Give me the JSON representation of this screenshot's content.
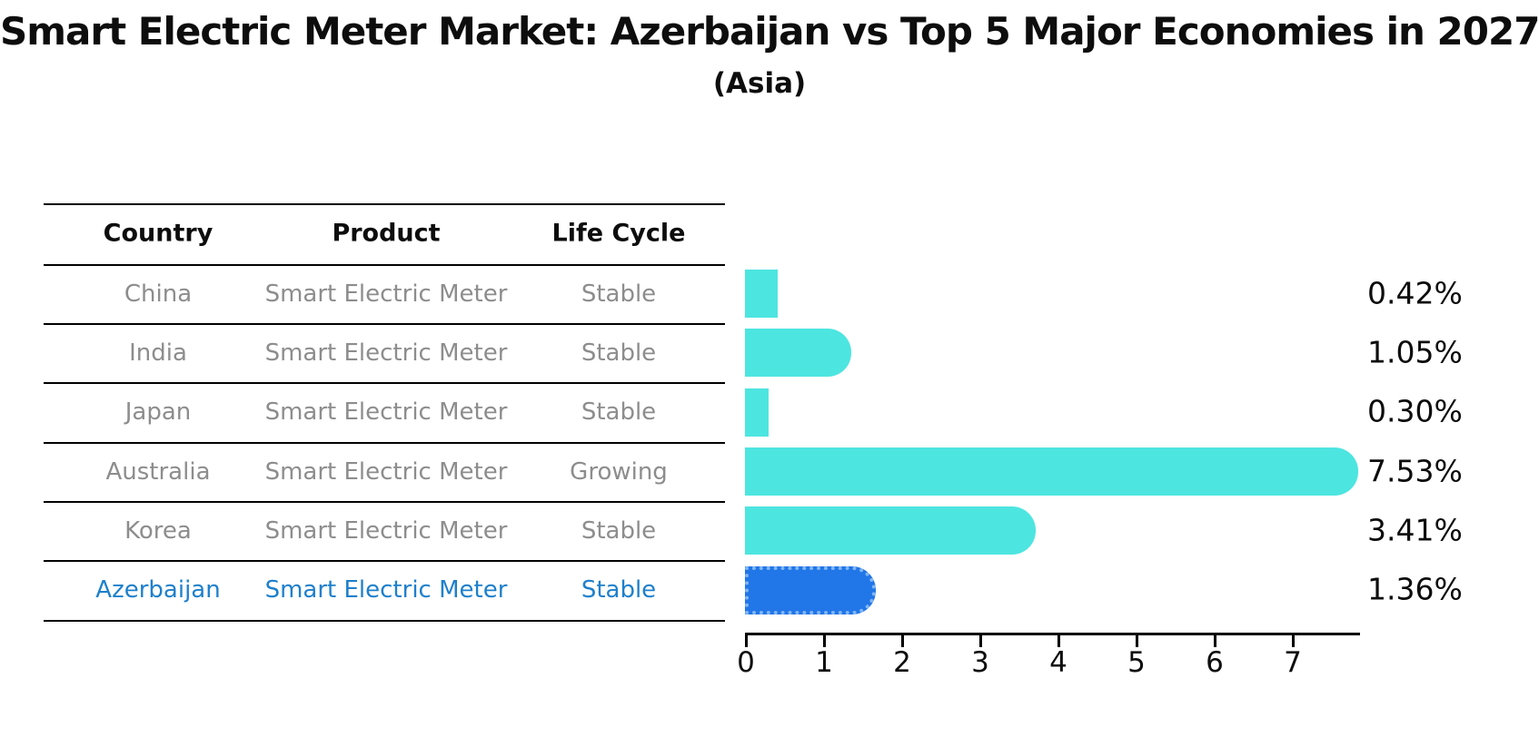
{
  "title": "Smart Electric Meter Market: Azerbaijan vs Top 5 Major Economies in 2027",
  "subtitle": "(Asia)",
  "table": {
    "columns": [
      "Country",
      "Product",
      "Life Cycle"
    ],
    "rows": [
      {
        "country": "China",
        "product": "Smart Electric Meter",
        "life_cycle": "Stable",
        "highlighted": false
      },
      {
        "country": "India",
        "product": "Smart Electric Meter",
        "life_cycle": "Stable",
        "highlighted": false
      },
      {
        "country": "Japan",
        "product": "Smart Electric Meter",
        "life_cycle": "Stable",
        "highlighted": false
      },
      {
        "country": "Australia",
        "product": "Smart Electric Meter",
        "life_cycle": "Growing",
        "highlighted": false
      },
      {
        "country": "Korea",
        "product": "Smart Electric Meter",
        "life_cycle": "Stable",
        "highlighted": false
      },
      {
        "country": "Azerbaijan",
        "product": "Smart Electric Meter",
        "life_cycle": "Stable",
        "highlighted": true
      }
    ]
  },
  "chart_data": {
    "type": "bar",
    "orientation": "horizontal",
    "title": "Smart Electric Meter Market: Azerbaijan vs Top 5 Major Economies in 2027",
    "subtitle": "(Asia)",
    "categories": [
      "China",
      "India",
      "Japan",
      "Australia",
      "Korea",
      "Azerbaijan"
    ],
    "values": [
      0.42,
      1.05,
      0.3,
      7.53,
      3.41,
      1.36
    ],
    "value_labels": [
      "0.42%",
      "1.05%",
      "0.30%",
      "7.53%",
      "3.41%",
      "1.36%"
    ],
    "highlight_index": 5,
    "x_ticks": [
      0,
      1,
      2,
      3,
      4,
      5,
      6,
      7
    ],
    "xlim": [
      0,
      7.9
    ],
    "xlabel": "",
    "ylabel": "",
    "grid": false,
    "legend": false
  },
  "colors": {
    "bar_default": "#4DE5E0",
    "bar_highlight": "#2176E8",
    "bar_highlight_border": "#7FB5F3",
    "highlight_text": "#1E80CC",
    "table_text": "#8d8d8d",
    "heading_text": "#0d0d0d",
    "axis": "#000000",
    "background": "#ffffff"
  }
}
